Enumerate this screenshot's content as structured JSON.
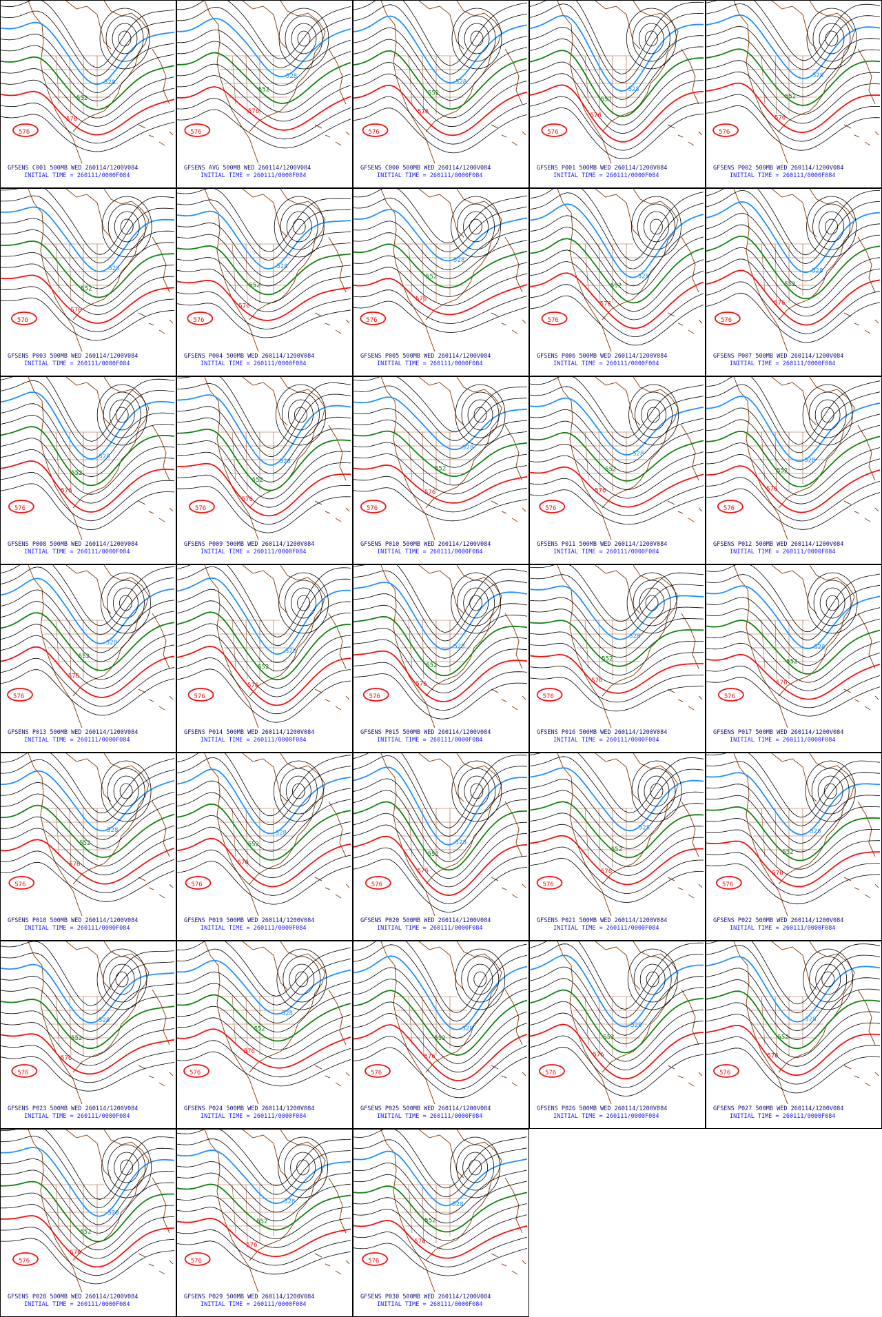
{
  "panels": [
    {
      "title": "GFSENS C001 500MB WED 260114/1200V084",
      "init": "INITIAL TIME = 260111/0000F084",
      "contour_labels": [
        "528",
        "552",
        "576",
        "576"
      ]
    },
    {
      "title": "GFSENS AVG 500MB WED 260114/1200V084",
      "init": "INITIAL TIME = 260111/0000F084",
      "contour_labels": [
        "528",
        "552",
        "576",
        "576"
      ]
    },
    {
      "title": "GFSENS C000 500MB WED 260114/1200V084",
      "init": "INITIAL TIME = 260111/0000F084",
      "contour_labels": [
        "528",
        "552",
        "576",
        "576"
      ]
    },
    {
      "title": "GFSENS P001 500MB WED 260114/1200V084",
      "init": "INITIAL TIME = 260111/0000F084",
      "contour_labels": [
        "528",
        "552",
        "576",
        "576"
      ]
    },
    {
      "title": "GFSENS P002 500MB WED 260114/1200V084",
      "init": "INITIAL TIME = 260111/0000F084",
      "contour_labels": [
        "528",
        "552",
        "576",
        "576"
      ]
    },
    {
      "title": "GFSENS P003 500MB WED 260114/1200V084",
      "init": "INITIAL TIME = 260111/0000F084",
      "contour_labels": [
        "528",
        "552",
        "576",
        "576"
      ]
    },
    {
      "title": "GFSENS P004 500MB WED 260114/1200V084",
      "init": "INITIAL TIME = 260111/0000F084",
      "contour_labels": [
        "528",
        "552",
        "576",
        "576"
      ]
    },
    {
      "title": "GFSENS P005 500MB WED 260114/1200V084",
      "init": "INITIAL TIME = 260111/0000F084",
      "contour_labels": [
        "528",
        "552",
        "576",
        "576"
      ]
    },
    {
      "title": "GFSENS P006 500MB WED 260114/1200V084",
      "init": "INITIAL TIME = 260111/0000F084",
      "contour_labels": [
        "528",
        "552",
        "576",
        "576"
      ]
    },
    {
      "title": "GFSENS P007 500MB WED 260114/1200V084",
      "init": "INITIAL TIME = 260111/0000F084",
      "contour_labels": [
        "528",
        "552",
        "576",
        "576"
      ]
    },
    {
      "title": "GFSENS P008 500MB WED 260114/1200V084",
      "init": "INITIAL TIME = 260111/0000F084",
      "contour_labels": [
        "528",
        "552",
        "576",
        "576"
      ]
    },
    {
      "title": "GFSENS P009 500MB WED 260114/1200V084",
      "init": "INITIAL TIME = 260111/0000F084",
      "contour_labels": [
        "528",
        "552",
        "576",
        "576"
      ]
    },
    {
      "title": "GFSENS P010 500MB WED 260114/1200V084",
      "init": "INITIAL TIME = 260111/0000F084",
      "contour_labels": [
        "528",
        "552",
        "576",
        "576"
      ]
    },
    {
      "title": "GFSENS P011 500MB WED 260114/1200V084",
      "init": "INITIAL TIME = 260111/0000F084",
      "contour_labels": [
        "528",
        "552",
        "576",
        "576"
      ]
    },
    {
      "title": "GFSENS P012 500MB WED 260114/1200V084",
      "init": "INITIAL TIME = 260111/0000F084",
      "contour_labels": [
        "528",
        "552",
        "576",
        "576"
      ]
    },
    {
      "title": "GFSENS P013 500MB WED 260114/1200V084",
      "init": "INITIAL TIME = 260111/0000F084",
      "contour_labels": [
        "528",
        "552",
        "576",
        "576"
      ]
    },
    {
      "title": "GFSENS P014 500MB WED 260114/1200V084",
      "init": "INITIAL TIME = 260111/0000F084",
      "contour_labels": [
        "528",
        "552",
        "576",
        "576"
      ]
    },
    {
      "title": "GFSENS P015 500MB WED 260114/1200V084",
      "init": "INITIAL TIME = 260111/0000F084",
      "contour_labels": [
        "528",
        "552",
        "576",
        "576"
      ]
    },
    {
      "title": "GFSENS P016 500MB WED 260114/1200V084",
      "init": "INITIAL TIME = 260111/0000F084",
      "contour_labels": [
        "528",
        "552",
        "576",
        "576"
      ]
    },
    {
      "title": "GFSENS P017 500MB WED 260114/1200V084",
      "init": "INITIAL TIME = 260111/0000F084",
      "contour_labels": [
        "528",
        "552",
        "576",
        "576"
      ]
    },
    {
      "title": "GFSENS P018 500MB WED 260114/1200V084",
      "init": "INITIAL TIME = 260111/0000F084",
      "contour_labels": [
        "528",
        "552",
        "576",
        "576"
      ]
    },
    {
      "title": "GFSENS P019 500MB WED 260114/1200V084",
      "init": "INITIAL TIME = 260111/0000F084",
      "contour_labels": [
        "528",
        "552",
        "576",
        "576"
      ]
    },
    {
      "title": "GFSENS P020 500MB WED 260114/1200V084",
      "init": "INITIAL TIME = 260111/0000F084",
      "contour_labels": [
        "528",
        "552",
        "576",
        "576"
      ]
    },
    {
      "title": "GFSENS P021 500MB WED 260114/1200V084",
      "init": "INITIAL TIME = 260111/0000F084",
      "contour_labels": [
        "528",
        "552",
        "576",
        "576"
      ]
    },
    {
      "title": "GFSENS P022 500MB WED 260114/1200V084",
      "init": "INITIAL TIME = 260111/0000F084",
      "contour_labels": [
        "528",
        "552",
        "576",
        "576"
      ]
    },
    {
      "title": "GFSENS P023 500MB WED 260114/1200V084",
      "init": "INITIAL TIME = 260111/0000F084",
      "contour_labels": [
        "528",
        "552",
        "576",
        "576"
      ]
    },
    {
      "title": "GFSENS P024 500MB WED 260114/1200V084",
      "init": "INITIAL TIME = 260111/0000F084",
      "contour_labels": [
        "528",
        "552",
        "576",
        "576"
      ]
    },
    {
      "title": "GFSENS P025 500MB WED 260114/1200V084",
      "init": "INITIAL TIME = 260111/0000F084",
      "contour_labels": [
        "528",
        "552",
        "576",
        "576"
      ]
    },
    {
      "title": "GFSENS P026 500MB WED 260114/1200V084",
      "init": "INITIAL TIME = 260111/0000F084",
      "contour_labels": [
        "528",
        "552",
        "576",
        "576"
      ]
    },
    {
      "title": "GFSENS P027 500MB WED 260114/1200V084",
      "init": "INITIAL TIME = 260111/0000F084",
      "contour_labels": [
        "528",
        "552",
        "576",
        "576"
      ]
    },
    {
      "title": "GFSENS P028 500MB WED 260114/1200V084",
      "init": "INITIAL TIME = 260111/0000F084",
      "contour_labels": [
        "528",
        "552",
        "576",
        "576"
      ]
    },
    {
      "title": "GFSENS P029 500MB WED 260114/1200V084",
      "init": "INITIAL TIME = 260111/0000F084",
      "contour_labels": [
        "528",
        "552",
        "576",
        "576"
      ]
    },
    {
      "title": "GFSENS P030 500MB WED 260114/1200V084",
      "init": "INITIAL TIME = 260111/0000F084",
      "contour_labels": [
        "528",
        "552",
        "576",
        "576"
      ]
    }
  ]
}
